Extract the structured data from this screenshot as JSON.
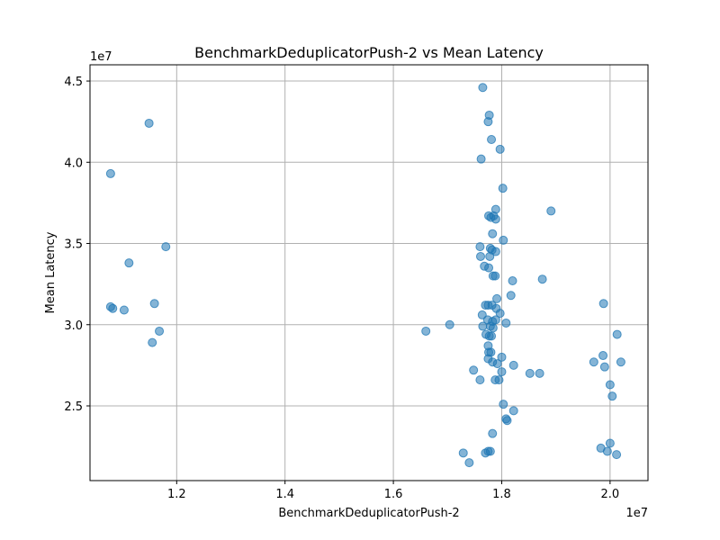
{
  "chart_data": {
    "type": "scatter",
    "title": "BenchmarkDeduplicatorPush-2 vs Mean Latency",
    "xlabel": "BenchmarkDeduplicatorPush-2",
    "ylabel": "Mean Latency",
    "x_offset_label": "1e7",
    "y_offset_label": "1e7",
    "xlim": [
      1.04,
      2.07
    ],
    "ylim": [
      2.04,
      4.6
    ],
    "x_ticks": [
      1.2,
      1.4,
      1.6,
      1.8,
      2.0
    ],
    "x_tick_labels": [
      "1.2",
      "1.4",
      "1.6",
      "1.8",
      "2.0"
    ],
    "y_ticks": [
      2.5,
      3.0,
      3.5,
      4.0,
      4.5
    ],
    "y_tick_labels": [
      "2.5",
      "3.0",
      "3.5",
      "4.0",
      "4.5"
    ],
    "grid": true,
    "point_color": "#1f77b4",
    "points": [
      [
        1.078,
        3.93
      ],
      [
        1.149,
        4.24
      ],
      [
        1.112,
        3.38
      ],
      [
        1.18,
        3.48
      ],
      [
        1.078,
        3.11
      ],
      [
        1.082,
        3.1
      ],
      [
        1.103,
        3.09
      ],
      [
        1.159,
        3.13
      ],
      [
        1.168,
        2.96
      ],
      [
        1.155,
        2.89
      ],
      [
        1.66,
        2.96
      ],
      [
        1.704,
        3.0
      ],
      [
        1.765,
        4.46
      ],
      [
        1.777,
        4.29
      ],
      [
        1.775,
        4.25
      ],
      [
        1.781,
        4.14
      ],
      [
        1.797,
        4.08
      ],
      [
        1.762,
        4.02
      ],
      [
        1.802,
        3.84
      ],
      [
        1.789,
        3.71
      ],
      [
        1.776,
        3.67
      ],
      [
        1.78,
        3.66
      ],
      [
        1.785,
        3.67
      ],
      [
        1.789,
        3.65
      ],
      [
        1.891,
        3.7
      ],
      [
        1.783,
        3.56
      ],
      [
        1.803,
        3.52
      ],
      [
        1.76,
        3.48
      ],
      [
        1.779,
        3.47
      ],
      [
        1.782,
        3.46
      ],
      [
        1.789,
        3.45
      ],
      [
        1.761,
        3.42
      ],
      [
        1.778,
        3.42
      ],
      [
        1.768,
        3.36
      ],
      [
        1.776,
        3.35
      ],
      [
        1.784,
        3.3
      ],
      [
        1.788,
        3.3
      ],
      [
        1.82,
        3.27
      ],
      [
        1.875,
        3.28
      ],
      [
        1.791,
        3.16
      ],
      [
        1.817,
        3.18
      ],
      [
        1.77,
        3.12
      ],
      [
        1.775,
        3.12
      ],
      [
        1.782,
        3.12
      ],
      [
        1.79,
        3.1
      ],
      [
        1.764,
        3.06
      ],
      [
        1.797,
        3.07
      ],
      [
        1.774,
        3.03
      ],
      [
        1.783,
        3.02
      ],
      [
        1.789,
        3.03
      ],
      [
        1.808,
        3.01
      ],
      [
        1.765,
        2.99
      ],
      [
        1.779,
        2.99
      ],
      [
        1.784,
        2.98
      ],
      [
        1.771,
        2.94
      ],
      [
        1.777,
        2.93
      ],
      [
        1.781,
        2.93
      ],
      [
        1.775,
        2.87
      ],
      [
        1.776,
        2.83
      ],
      [
        1.78,
        2.83
      ],
      [
        1.775,
        2.79
      ],
      [
        1.783,
        2.77
      ],
      [
        1.792,
        2.76
      ],
      [
        1.8,
        2.8
      ],
      [
        1.822,
        2.75
      ],
      [
        1.748,
        2.72
      ],
      [
        1.8,
        2.71
      ],
      [
        1.852,
        2.7
      ],
      [
        1.87,
        2.7
      ],
      [
        1.76,
        2.66
      ],
      [
        1.788,
        2.66
      ],
      [
        1.795,
        2.66
      ],
      [
        1.803,
        2.51
      ],
      [
        1.822,
        2.47
      ],
      [
        1.808,
        2.42
      ],
      [
        1.81,
        2.41
      ],
      [
        1.783,
        2.33
      ],
      [
        1.729,
        2.21
      ],
      [
        1.74,
        2.15
      ],
      [
        1.77,
        2.21
      ],
      [
        1.775,
        2.22
      ],
      [
        1.779,
        2.22
      ],
      [
        1.988,
        3.13
      ],
      [
        2.013,
        2.94
      ],
      [
        1.97,
        2.77
      ],
      [
        1.987,
        2.81
      ],
      [
        1.99,
        2.74
      ],
      [
        2.02,
        2.77
      ],
      [
        2.0,
        2.63
      ],
      [
        2.004,
        2.56
      ],
      [
        1.983,
        2.24
      ],
      [
        1.995,
        2.22
      ],
      [
        2.0,
        2.27
      ],
      [
        2.012,
        2.2
      ]
    ]
  }
}
